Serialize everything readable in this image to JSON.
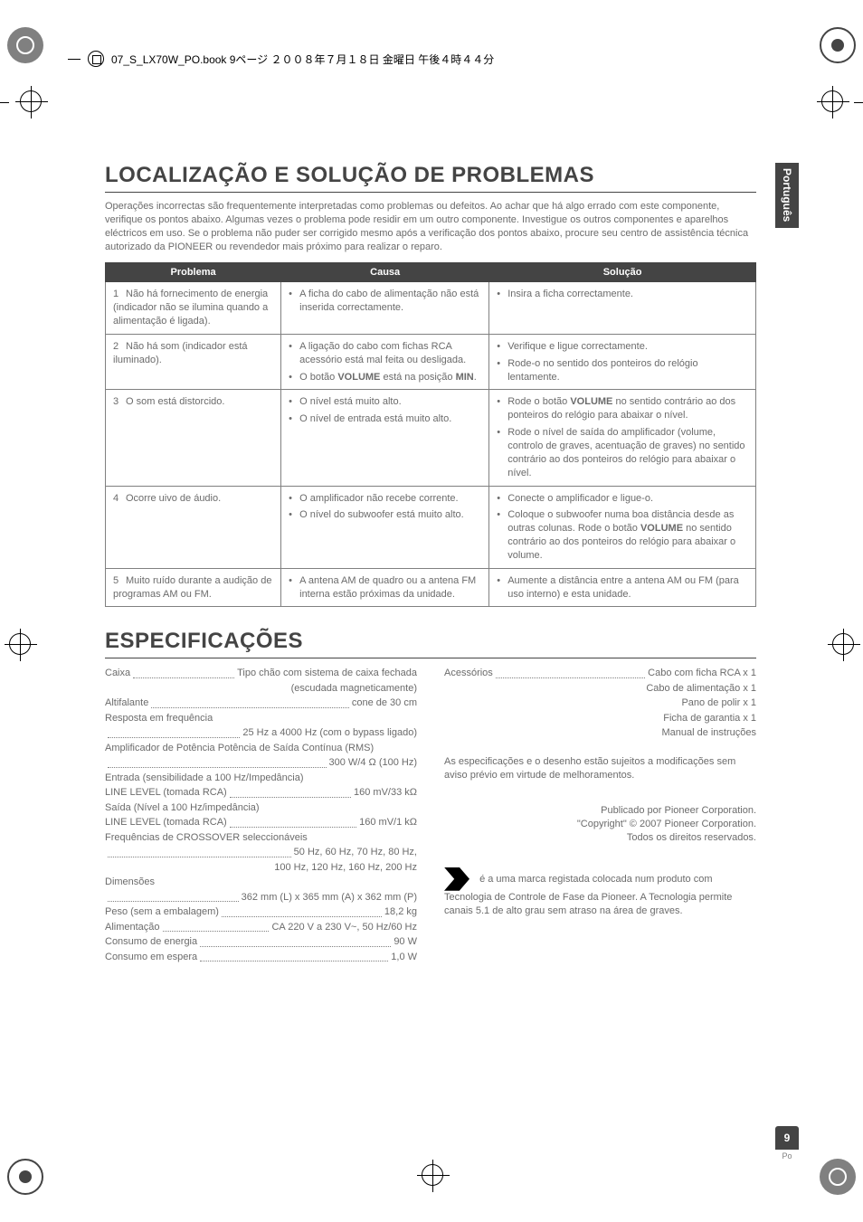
{
  "header_text": "07_S_LX70W_PO.book 9ページ ２００８年７月１８日 金曜日 午後４時４４分",
  "side_tab": "Português",
  "page_number": "9",
  "page_lang": "Po",
  "title1": "LOCALIZAÇÃO E SOLUÇÃO DE PROBLEMAS",
  "intro": "Operações incorrectas são frequentemente interpretadas como problemas ou defeitos. Ao achar que há algo errado com este componente, verifique os pontos abaixo. Algumas vezes o problema pode residir em um outro componente. Investigue os outros componentes e aparelhos eléctricos em uso. Se o problema não puder ser corrigido mesmo após a verificação dos pontos abaixo, procure seu centro de assistência técnica autorizado da PIONEER ou revendedor mais próximo para realizar o reparo.",
  "table": {
    "headers": [
      "Problema",
      "Causa",
      "Solução"
    ],
    "rows": [
      {
        "num": "1",
        "problem": "Não há fornecimento de energia (indicador não se ilumina quando a alimentação é ligada).",
        "cause": [
          "A ficha do cabo de alimentação não está inserida correctamente."
        ],
        "solution": [
          "Insira a ficha correctamente."
        ]
      },
      {
        "num": "2",
        "problem": "Não há som (indicador está iluminado).",
        "cause": [
          "A ligação do cabo com fichas RCA acessório está mal feita ou desligada.",
          "O botão <b>VOLUME</b> está na posição <b>MIN</b>."
        ],
        "solution": [
          "Verifique e ligue correctamente.",
          "Rode-o no sentido dos ponteiros do relógio lentamente."
        ]
      },
      {
        "num": "3",
        "problem": "O som está distorcido.",
        "cause": [
          "O nível está muito alto.",
          "O nível de entrada está muito alto."
        ],
        "solution": [
          "Rode o botão <b>VOLUME</b> no sentido contrário ao dos ponteiros do relógio para abaixar o nível.",
          "Rode o nível de saída do amplificador (volume, controlo de graves, acentuação de graves) no sentido contrário ao dos ponteiros do relógio para abaixar o nível."
        ]
      },
      {
        "num": "4",
        "problem": "Ocorre uivo de áudio.",
        "cause": [
          "O amplificador não recebe corrente.",
          "O nível do subwoofer está muito alto."
        ],
        "solution": [
          "Conecte o amplificador e ligue-o.",
          "Coloque o subwoofer numa boa distância desde as outras colunas. Rode o botão <b>VOLUME</b> no sentido contrário ao dos ponteiros do relógio para abaixar o volume."
        ]
      },
      {
        "num": "5",
        "problem": "Muito ruído durante a audição de programas AM ou FM.",
        "cause": [
          "A antena AM de quadro ou a antena FM interna estão próximas da unidade."
        ],
        "solution": [
          "Aumente a distância entre a antena AM ou FM (para uso interno) e esta unidade."
        ]
      }
    ]
  },
  "title2": "ESPECIFICAÇÕES",
  "specs_left": [
    {
      "label": "Caixa",
      "value": "Tipo chão com sistema de caixa fechada"
    },
    {
      "label": "",
      "value": "(escudada magneticamente)",
      "right": true
    },
    {
      "label": "Altifalante",
      "value": "cone de 30 cm"
    },
    {
      "label": "Resposta em frequência",
      "value": ""
    },
    {
      "label": "",
      "value": "25 Hz a 4000 Hz (com o bypass ligado)"
    },
    {
      "label": "Amplificador de Potência Potência de Saída Contínua (RMS)",
      "value": "",
      "nowrap": true
    },
    {
      "label": "",
      "value": "300 W/4 Ω (100 Hz)"
    },
    {
      "label": "Entrada (sensibilidade a 100 Hz/Impedância)",
      "value": "",
      "nowrap": true
    },
    {
      "label": "   LINE LEVEL (tomada RCA)",
      "value": "160 mV/33 kΩ"
    },
    {
      "label": "Saída (Nível a 100 Hz/impedância)",
      "value": "",
      "nowrap": true
    },
    {
      "label": "   LINE LEVEL (tomada RCA)",
      "value": "160 mV/1 kΩ"
    },
    {
      "label": "Frequências de CROSSOVER seleccionáveis",
      "value": "",
      "nowrap": true
    },
    {
      "label": "",
      "value": "50 Hz, 60 Hz, 70 Hz, 80 Hz,"
    },
    {
      "label": "",
      "value": "100 Hz, 120 Hz, 160 Hz, 200 Hz",
      "right": true
    },
    {
      "label": "Dimensões",
      "value": "",
      "nowrap": true
    },
    {
      "label": "",
      "value": "362 mm (L)  x  365 mm (A)  x  362 mm (P)"
    },
    {
      "label": "Peso (sem a embalagem)",
      "value": "18,2 kg"
    },
    {
      "label": "Alimentação",
      "value": "CA 220 V a 230 V~, 50 Hz/60 Hz"
    },
    {
      "label": "Consumo de energia",
      "value": "90 W"
    },
    {
      "label": "Consumo em espera",
      "value": "1,0 W"
    }
  ],
  "specs_right": [
    {
      "label": "Acessórios",
      "value": "Cabo com ficha RCA  x  1"
    },
    {
      "label": "",
      "value": "Cabo de alimentação  x  1",
      "right": true
    },
    {
      "label": "",
      "value": "Pano de polir  x  1",
      "right": true
    },
    {
      "label": "",
      "value": "Ficha de garantia  x  1",
      "right": true
    },
    {
      "label": "",
      "value": "Manual de instruções",
      "right": true
    }
  ],
  "footnote": "As especificações e o desenho estão sujeitos a modificações sem aviso prévio em virtude de melhoramentos.",
  "copyright1": "Publicado por Pioneer Corporation.",
  "copyright2": "\"Copyright\" © 2007 Pioneer Corporation.",
  "copyright3": "Todos os direitos reservados.",
  "logo_text": "é a uma marca registada colocada num produto com Tecnologia de Controle de Fase da Pioneer. A Tecnologia permite canais 5.1 de alto grau sem atraso na área de graves."
}
